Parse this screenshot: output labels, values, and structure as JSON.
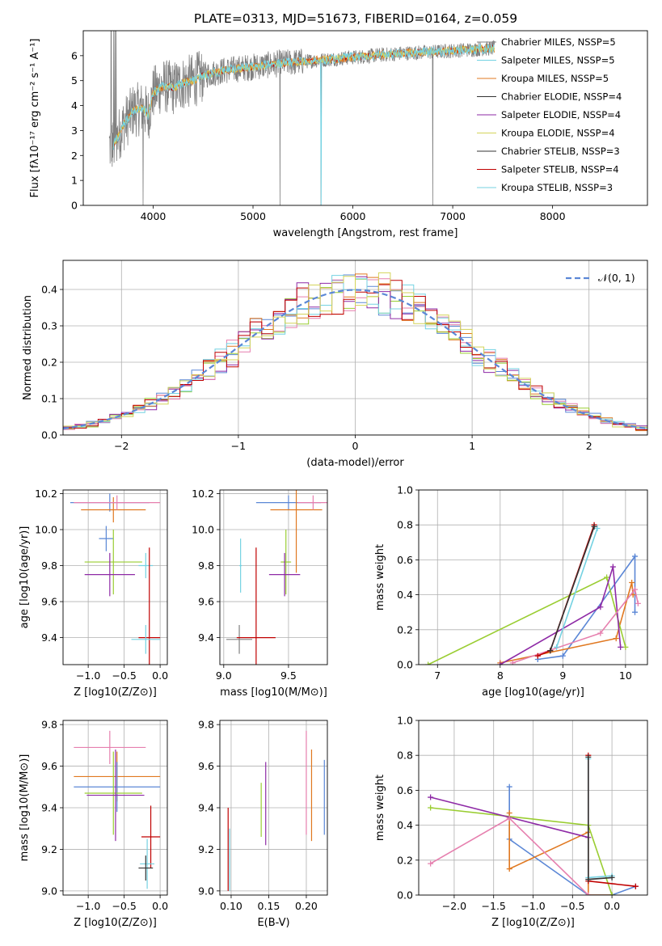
{
  "figure": {
    "title": "PLATE=0313, MJD=51673, FIBERID=0164, z=0.059"
  },
  "colors": {
    "grey": "#808080",
    "blue": "#5b87d6",
    "orange": "#e07820",
    "green": "#9acd32",
    "purple": "#8e2aa6",
    "pink": "#e67fae",
    "cyan": "#74d2e2",
    "red": "#c00000",
    "dark": "#333333",
    "light": "#d4d45a"
  },
  "chart_data": [
    {
      "id": "spectrum",
      "type": "line",
      "xlabel": "wavelength [Angstrom, rest frame]",
      "ylabel": "Flux [fλ10⁻¹⁷ erg cm⁻² s⁻¹ A⁻¹]",
      "xlim": [
        3300,
        8950
      ],
      "ylim": [
        0,
        7
      ],
      "xticks": [
        4000,
        5000,
        6000,
        7000,
        8000
      ],
      "yticks": [
        0,
        1,
        2,
        3,
        4,
        5,
        6
      ],
      "grid": false,
      "legend_position": "right",
      "legend": [
        {
          "label": "Chabrier MILES, NSSP=5",
          "color": "grey"
        },
        {
          "label": "Salpeter MILES, NSSP=5",
          "color": "cyan"
        },
        {
          "label": "Kroupa MILES, NSSP=5",
          "color": "orange"
        },
        {
          "label": "Chabrier ELODIE, NSSP=4",
          "color": "dark"
        },
        {
          "label": "Salpeter ELODIE, NSSP=4",
          "color": "purple"
        },
        {
          "label": "Kroupa ELODIE, NSSP=4",
          "color": "light"
        },
        {
          "label": "Chabrier STELIB, NSSP=3",
          "color": "dark"
        },
        {
          "label": "Salpeter STELIB, NSSP=4",
          "color": "red"
        },
        {
          "label": "Kroupa STELIB, NSSP=3",
          "color": "cyan"
        }
      ],
      "continuum": [
        [
          3600,
          2.4
        ],
        [
          3700,
          3.2
        ],
        [
          3800,
          3.8
        ],
        [
          3900,
          3.9
        ],
        [
          3950,
          3.6
        ],
        [
          4000,
          4.5
        ],
        [
          4100,
          4.8
        ],
        [
          4200,
          4.7
        ],
        [
          4300,
          4.9
        ],
        [
          4400,
          5.0
        ],
        [
          4500,
          5.2
        ],
        [
          4700,
          5.4
        ],
        [
          4900,
          5.5
        ],
        [
          5100,
          5.6
        ],
        [
          5300,
          5.7
        ],
        [
          5600,
          5.8
        ],
        [
          5900,
          5.9
        ],
        [
          6200,
          6.0
        ],
        [
          6500,
          6.1
        ],
        [
          6800,
          6.15
        ],
        [
          7000,
          6.2
        ],
        [
          7200,
          6.25
        ],
        [
          7420,
          6.3
        ]
      ],
      "data_dips": [
        [
          3900,
          0
        ],
        [
          5270,
          0
        ],
        [
          5680,
          0
        ],
        [
          6800,
          0
        ],
        [
          7420,
          0
        ]
      ]
    },
    {
      "id": "residuals",
      "type": "bar",
      "xlabel": "(data-model)/error",
      "ylabel": "Normed distribution",
      "xlim": [
        -2.5,
        2.5
      ],
      "ylim": [
        0,
        0.48
      ],
      "xticks": [
        -2,
        -1,
        0,
        1,
        2
      ],
      "yticks": [
        0.0,
        0.1,
        0.2,
        0.3,
        0.4
      ],
      "grid": true,
      "legend_position": "top-right",
      "legend": [
        {
          "label": "𝒩(0, 1)",
          "color": "blue"
        }
      ],
      "normal_pdf": {
        "mean": 0,
        "std": 1
      }
    },
    {
      "id": "age-vs-z",
      "type": "scatter",
      "xlabel": "Z [log10(Z/Z⊙)]",
      "ylabel": "age  [log10(age/yr)]",
      "xlim": [
        -1.35,
        0.1
      ],
      "ylim": [
        9.25,
        10.22
      ],
      "xticks": [
        -1.0,
        -0.5,
        0.0
      ],
      "yticks": [
        9.4,
        9.6,
        9.8,
        10.0,
        10.2
      ],
      "grid": true,
      "points": [
        {
          "x": -0.7,
          "y": 10.15,
          "xerr": 0.55,
          "yerr": 0.05,
          "color": "blue"
        },
        {
          "x": -0.65,
          "y": 10.11,
          "xerr": 0.45,
          "yerr": 0.07,
          "color": "orange"
        },
        {
          "x": -0.6,
          "y": 10.15,
          "xerr": 0.6,
          "yerr": 0.04,
          "color": "pink"
        },
        {
          "x": -0.75,
          "y": 9.95,
          "xerr": 0.1,
          "yerr": 0.07,
          "color": "blue"
        },
        {
          "x": -0.65,
          "y": 9.82,
          "xerr": 0.4,
          "yerr": 0.18,
          "color": "green"
        },
        {
          "x": -0.7,
          "y": 9.75,
          "xerr": 0.35,
          "yerr": 0.12,
          "color": "purple"
        },
        {
          "x": -0.2,
          "y": 9.8,
          "xerr": 0.1,
          "yerr": 0.07,
          "color": "cyan"
        },
        {
          "x": -0.15,
          "y": 9.4,
          "xerr": 0.15,
          "yerr": 0.5,
          "color": "red"
        },
        {
          "x": -0.2,
          "y": 9.39,
          "xerr": 0.2,
          "yerr": 0.08,
          "color": "cyan"
        }
      ]
    },
    {
      "id": "age-vs-mass",
      "type": "scatter",
      "xlabel": "mass [log10(M/M⊙)]",
      "ylabel": "",
      "xlim": [
        8.97,
        9.8
      ],
      "ylim": [
        9.25,
        10.22
      ],
      "xticks": [
        9.0,
        9.5
      ],
      "yticks": [
        9.4,
        9.6,
        9.8,
        10.0,
        10.2
      ],
      "grid": true,
      "points": [
        {
          "x": 9.5,
          "y": 10.15,
          "xerr": 0.25,
          "yerr": 0.04,
          "color": "blue"
        },
        {
          "x": 9.56,
          "y": 10.11,
          "xerr": 0.2,
          "yerr": 0.35,
          "color": "orange"
        },
        {
          "x": 9.69,
          "y": 10.15,
          "xerr": 0.12,
          "yerr": 0.04,
          "color": "pink"
        },
        {
          "x": 9.48,
          "y": 9.82,
          "xerr": 0.04,
          "yerr": 0.18,
          "color": "green"
        },
        {
          "x": 9.47,
          "y": 9.75,
          "xerr": 0.12,
          "yerr": 0.12,
          "color": "purple"
        },
        {
          "x": 9.13,
          "y": 9.8,
          "xerr": 0.01,
          "yerr": 0.15,
          "color": "cyan"
        },
        {
          "x": 9.12,
          "y": 9.39,
          "xerr": 0.1,
          "yerr": 0.08,
          "color": "grey"
        },
        {
          "x": 9.25,
          "y": 9.4,
          "xerr": 0.15,
          "yerr": 0.5,
          "color": "red"
        }
      ]
    },
    {
      "id": "weight-vs-age",
      "type": "line",
      "xlabel": "age  [log10(age/yr)]",
      "ylabel": "mass weight",
      "xlim": [
        6.7,
        10.35
      ],
      "ylim": [
        0.0,
        1.0
      ],
      "xticks": [
        7,
        8,
        9,
        10
      ],
      "yticks": [
        0.0,
        0.2,
        0.4,
        0.6,
        0.8,
        1.0
      ],
      "grid": true,
      "series": [
        {
          "color": "blue",
          "x": [
            8.6,
            9.0,
            10.15,
            10.15
          ],
          "y": [
            0.03,
            0.05,
            0.62,
            0.3
          ]
        },
        {
          "color": "orange",
          "x": [
            8.0,
            9.85,
            10.1,
            10.12
          ],
          "y": [
            0.01,
            0.15,
            0.47,
            0.4
          ]
        },
        {
          "color": "green",
          "x": [
            6.85,
            9.7,
            10.0
          ],
          "y": [
            0.0,
            0.5,
            0.1
          ]
        },
        {
          "color": "purple",
          "x": [
            8.0,
            9.6,
            9.8,
            9.92
          ],
          "y": [
            0.0,
            0.33,
            0.56,
            0.1
          ]
        },
        {
          "color": "pink",
          "x": [
            8.2,
            9.6,
            10.15,
            10.2
          ],
          "y": [
            0.01,
            0.18,
            0.43,
            0.35
          ]
        },
        {
          "color": "red",
          "x": [
            8.6,
            8.8,
            9.5
          ],
          "y": [
            0.05,
            0.08,
            0.8
          ]
        },
        {
          "color": "cyan",
          "x": [
            8.9,
            9.55
          ],
          "y": [
            0.1,
            0.78
          ]
        },
        {
          "color": "dark",
          "x": [
            8.8,
            9.5
          ],
          "y": [
            0.08,
            0.79
          ]
        }
      ]
    },
    {
      "id": "mass-vs-z",
      "type": "scatter",
      "xlabel": "Z [log10(Z/Z⊙)]",
      "ylabel": "mass [log10(M/M⊙)]",
      "xlim": [
        -1.35,
        0.1
      ],
      "ylim": [
        8.98,
        9.82
      ],
      "xticks": [
        -1.0,
        -0.5,
        0.0
      ],
      "yticks": [
        9.0,
        9.2,
        9.4,
        9.6,
        9.8
      ],
      "grid": true,
      "points": [
        {
          "x": -0.7,
          "y": 9.69,
          "xerr": 0.5,
          "yerr": 0.08,
          "color": "pink"
        },
        {
          "x": -0.6,
          "y": 9.55,
          "xerr": 0.6,
          "yerr": 0.12,
          "color": "orange"
        },
        {
          "x": -0.6,
          "y": 9.5,
          "xerr": 0.6,
          "yerr": 0.12,
          "color": "blue"
        },
        {
          "x": -0.65,
          "y": 9.47,
          "xerr": 0.4,
          "yerr": 0.2,
          "color": "green"
        },
        {
          "x": -0.62,
          "y": 9.46,
          "xerr": 0.4,
          "yerr": 0.22,
          "color": "purple"
        },
        {
          "x": -0.13,
          "y": 9.26,
          "xerr": 0.13,
          "yerr": 0.15,
          "color": "red"
        },
        {
          "x": -0.18,
          "y": 9.13,
          "xerr": 0.1,
          "yerr": 0.12,
          "color": "cyan"
        },
        {
          "x": -0.2,
          "y": 9.11,
          "xerr": 0.1,
          "yerr": 0.06,
          "color": "dark"
        }
      ]
    },
    {
      "id": "mass-vs-ebv",
      "type": "scatter",
      "xlabel": "E(B-V)",
      "ylabel": "",
      "xlim": [
        0.085,
        0.228
      ],
      "ylim": [
        8.98,
        9.82
      ],
      "xticks": [
        0.1,
        0.15,
        0.2
      ],
      "yticks": [
        9.0,
        9.2,
        9.4,
        9.6,
        9.8
      ],
      "grid": true,
      "points": [
        {
          "x": 0.096,
          "y": 9.2,
          "xerr": 0,
          "yerr": 0.2,
          "color": "red"
        },
        {
          "x": 0.098,
          "y": 9.15,
          "xerr": 0,
          "yerr": 0.15,
          "color": "cyan"
        },
        {
          "x": 0.14,
          "y": 9.39,
          "xerr": 0,
          "yerr": 0.13,
          "color": "green"
        },
        {
          "x": 0.146,
          "y": 9.42,
          "xerr": 0,
          "yerr": 0.2,
          "color": "purple"
        },
        {
          "x": 0.2,
          "y": 9.52,
          "xerr": 0,
          "yerr": 0.25,
          "color": "pink"
        },
        {
          "x": 0.207,
          "y": 9.46,
          "xerr": 0,
          "yerr": 0.22,
          "color": "orange"
        },
        {
          "x": 0.224,
          "y": 9.45,
          "xerr": 0,
          "yerr": 0.18,
          "color": "blue"
        }
      ]
    },
    {
      "id": "weight-vs-z",
      "type": "line",
      "xlabel": "Z [log10(Z/Z⊙)]",
      "ylabel": "mass weight",
      "xlim": [
        -2.45,
        0.45
      ],
      "ylim": [
        0.0,
        1.0
      ],
      "xticks": [
        -2.0,
        -1.5,
        -1.0,
        -0.5,
        0.0
      ],
      "yticks": [
        0.0,
        0.2,
        0.4,
        0.6,
        0.8,
        1.0
      ],
      "grid": true,
      "series": [
        {
          "color": "blue",
          "x": [
            -1.3,
            -1.3,
            -0.3,
            0.0,
            0.3
          ],
          "y": [
            0.62,
            0.32,
            0.0,
            0.0,
            0.05
          ]
        },
        {
          "color": "orange",
          "x": [
            -1.3,
            -1.3,
            -0.3,
            -0.3,
            0.0
          ],
          "y": [
            0.47,
            0.15,
            0.36,
            0.0,
            0.0
          ]
        },
        {
          "color": "green",
          "x": [
            -2.3,
            -0.3,
            0.0
          ],
          "y": [
            0.5,
            0.4,
            0.0
          ]
        },
        {
          "color": "purple",
          "x": [
            -2.3,
            -0.3
          ],
          "y": [
            0.56,
            0.33
          ]
        },
        {
          "color": "pink",
          "x": [
            -2.3,
            -1.3,
            -0.3
          ],
          "y": [
            0.18,
            0.44,
            0.0
          ]
        },
        {
          "color": "red",
          "x": [
            -0.3,
            -0.3,
            0.3
          ],
          "y": [
            0.8,
            0.08,
            0.05
          ]
        },
        {
          "color": "cyan",
          "x": [
            -0.3,
            -0.3,
            0.0
          ],
          "y": [
            0.78,
            0.1,
            0.11
          ]
        },
        {
          "color": "dark",
          "x": [
            -0.3,
            -0.3,
            0.0
          ],
          "y": [
            0.79,
            0.09,
            0.1
          ]
        }
      ]
    }
  ]
}
